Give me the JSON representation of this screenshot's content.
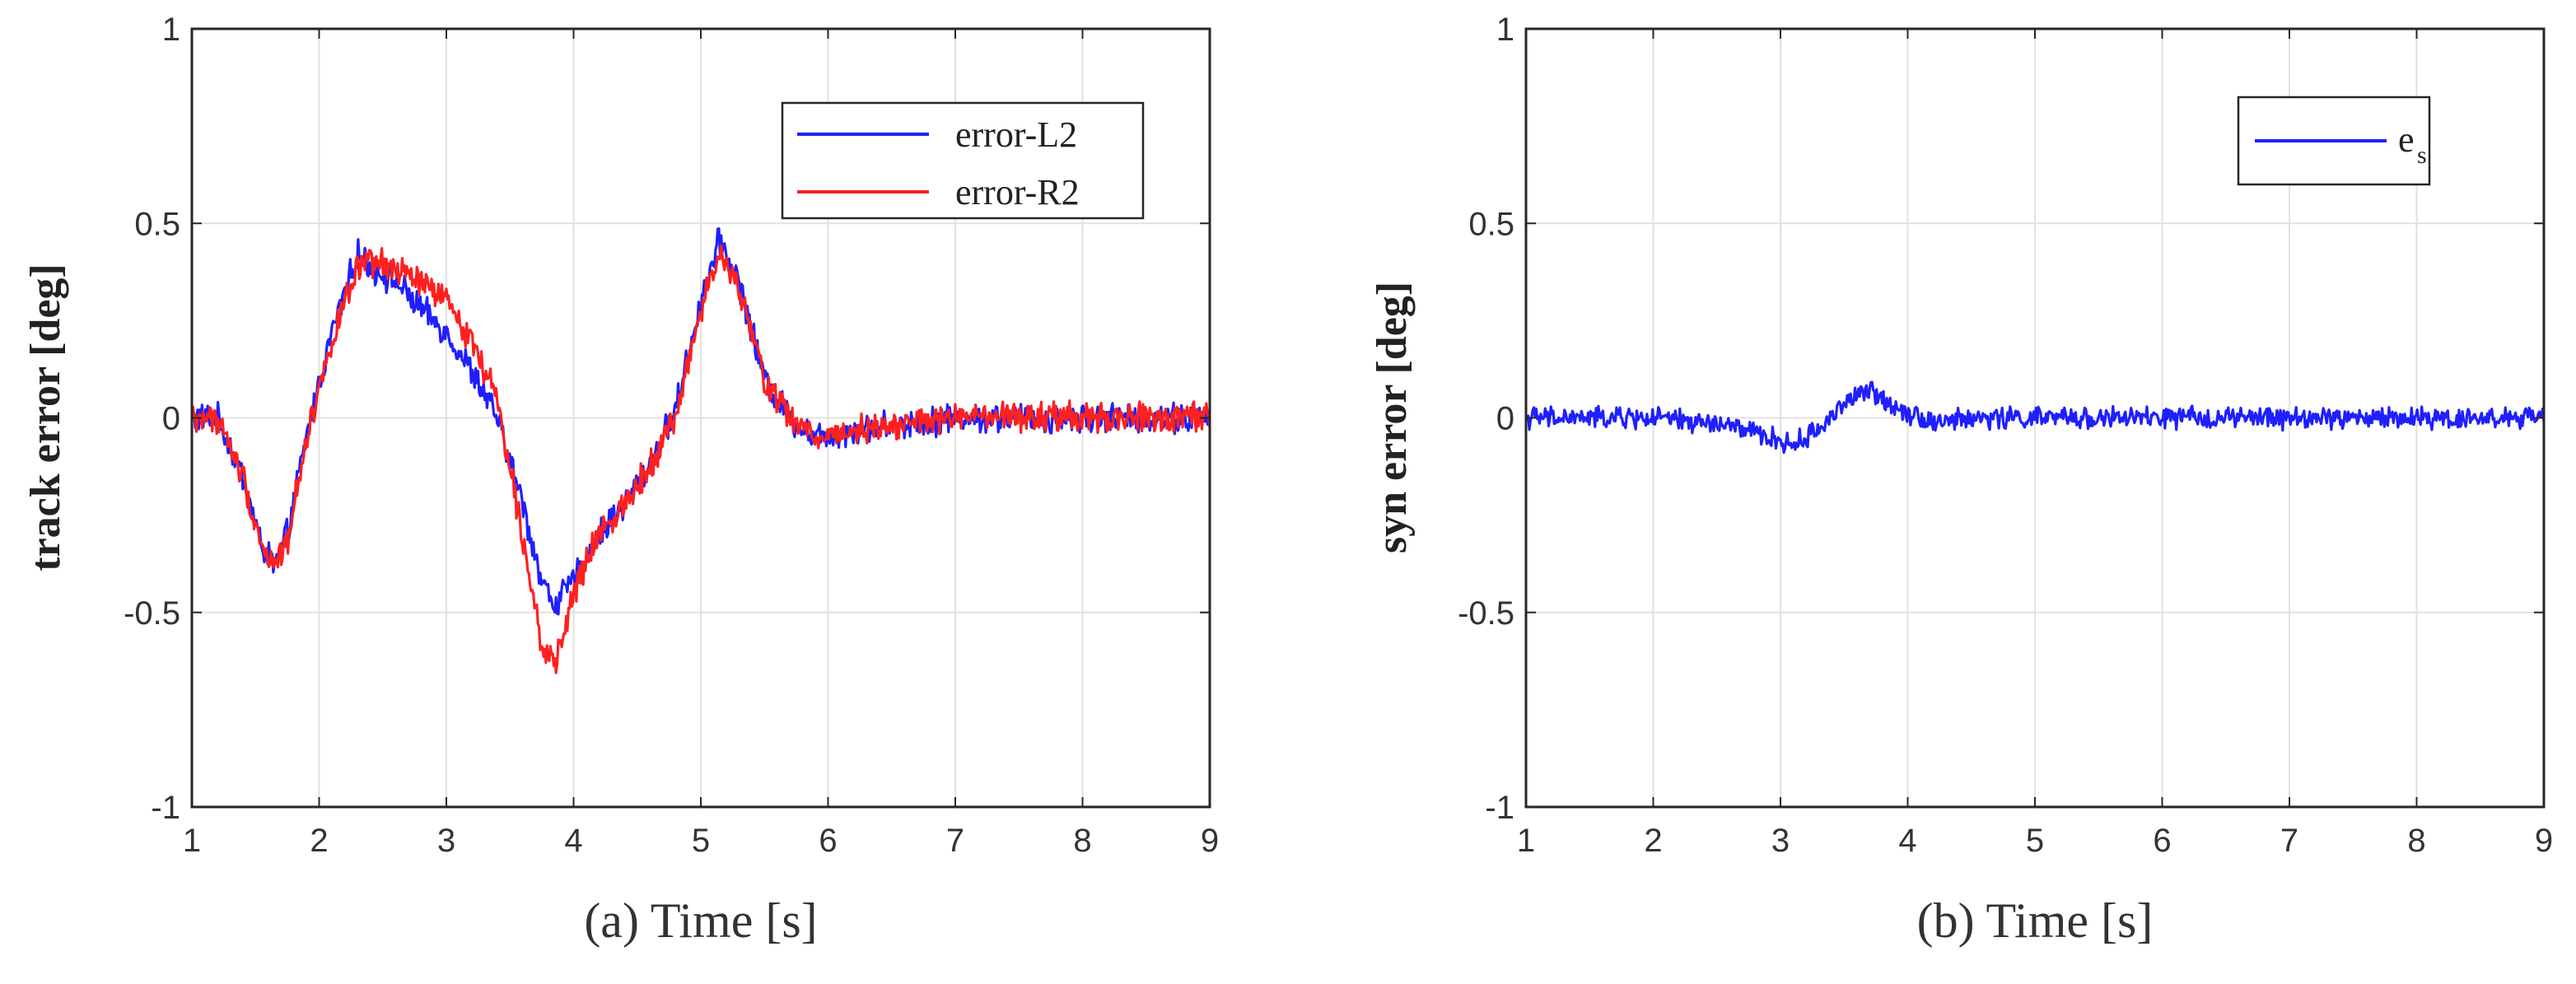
{
  "chart_data": [
    {
      "type": "line",
      "panel": "a",
      "xlabel": "(a) Time [s]",
      "ylabel": "track error [deg]",
      "xlim": [
        1,
        9
      ],
      "ylim": [
        -1,
        1
      ],
      "xticks": [
        1,
        2,
        3,
        4,
        5,
        6,
        7,
        8,
        9
      ],
      "yticks": [
        -1,
        -0.5,
        0,
        0.5,
        1
      ],
      "ytick_labels": [
        "-1",
        "-0.5",
        "0",
        "0.5",
        "1"
      ],
      "grid": true,
      "legend_position": "top-right",
      "series": [
        {
          "name": "error-L2",
          "color": "#1f1fff",
          "x": [
            1.0,
            1.2,
            1.4,
            1.55,
            1.65,
            1.75,
            1.9,
            2.1,
            2.3,
            2.45,
            2.6,
            2.8,
            3.0,
            3.2,
            3.4,
            3.6,
            3.75,
            3.85,
            4.0,
            4.2,
            4.4,
            4.6,
            4.8,
            5.0,
            5.15,
            5.3,
            5.5,
            5.7,
            5.9,
            6.2,
            7.0,
            8.0,
            9.0
          ],
          "values": [
            0.0,
            0.0,
            -0.15,
            -0.33,
            -0.38,
            -0.3,
            -0.05,
            0.22,
            0.42,
            0.38,
            0.35,
            0.28,
            0.22,
            0.12,
            0.0,
            -0.22,
            -0.42,
            -0.48,
            -0.42,
            -0.3,
            -0.22,
            -0.12,
            0.02,
            0.3,
            0.46,
            0.35,
            0.1,
            0.0,
            -0.05,
            -0.03,
            0.0,
            0.0,
            0.0
          ],
          "noise": 0.03
        },
        {
          "name": "error-R2",
          "color": "#ff2020",
          "x": [
            1.0,
            1.2,
            1.4,
            1.55,
            1.65,
            1.75,
            1.9,
            2.1,
            2.3,
            2.45,
            2.6,
            2.8,
            3.0,
            3.2,
            3.4,
            3.6,
            3.75,
            3.85,
            4.0,
            4.2,
            4.4,
            4.6,
            4.8,
            5.0,
            5.15,
            5.3,
            5.5,
            5.7,
            5.9,
            6.2,
            7.0,
            8.0,
            9.0
          ],
          "values": [
            0.0,
            0.0,
            -0.15,
            -0.33,
            -0.38,
            -0.32,
            -0.05,
            0.2,
            0.38,
            0.4,
            0.38,
            0.35,
            0.3,
            0.2,
            0.05,
            -0.3,
            -0.58,
            -0.65,
            -0.45,
            -0.3,
            -0.22,
            -0.12,
            0.0,
            0.28,
            0.42,
            0.33,
            0.1,
            0.0,
            -0.05,
            -0.03,
            0.0,
            0.0,
            0.0
          ],
          "noise": 0.03
        }
      ]
    },
    {
      "type": "line",
      "panel": "b",
      "xlabel": "(b) Time [s]",
      "ylabel": "syn error [deg]",
      "xlim": [
        1,
        9
      ],
      "ylim": [
        -1,
        1
      ],
      "xticks": [
        1,
        2,
        3,
        4,
        5,
        6,
        7,
        8,
        9
      ],
      "yticks": [
        -1,
        -0.5,
        0,
        0.5,
        1
      ],
      "ytick_labels": [
        "-1",
        "-0.5",
        "0",
        "0.5",
        "1"
      ],
      "grid": true,
      "legend_position": "top-right",
      "series": [
        {
          "name": "e",
          "name_subscript": "s",
          "color": "#1f1fff",
          "x": [
            1.0,
            2.0,
            2.6,
            2.9,
            3.1,
            3.3,
            3.5,
            3.7,
            3.9,
            4.2,
            4.6,
            5.0,
            6.0,
            7.0,
            8.0,
            9.0
          ],
          "values": [
            0.0,
            0.0,
            -0.02,
            -0.05,
            -0.07,
            -0.03,
            0.04,
            0.07,
            0.03,
            -0.01,
            0.0,
            0.0,
            0.0,
            0.0,
            0.0,
            0.0
          ],
          "noise": 0.022
        }
      ]
    }
  ]
}
